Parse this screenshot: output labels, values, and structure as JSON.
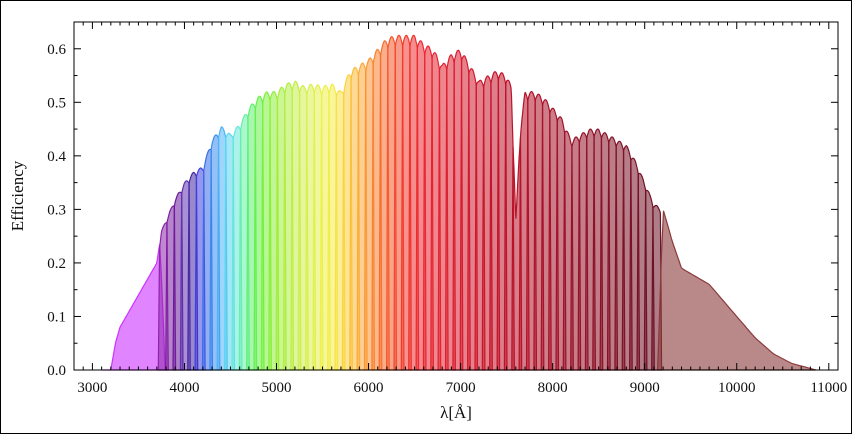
{
  "chart_data": {
    "type": "area",
    "xlabel": "λ[Å]",
    "ylabel": "Efficiency",
    "xlim": [
      2800,
      11100
    ],
    "ylim": [
      0,
      0.65
    ],
    "x_ticks": [
      3000,
      4000,
      5000,
      6000,
      7000,
      8000,
      9000,
      10000,
      11000
    ],
    "y_ticks": [
      0.0,
      0.1,
      0.2,
      0.3,
      0.4,
      0.5,
      0.6
    ],
    "x_tick_labels": [
      "3000",
      "4000",
      "5000",
      "6000",
      "7000",
      "8000",
      "9000",
      "10000",
      "11000"
    ],
    "y_tick_labels": [
      "0.0",
      "0.1",
      "0.2",
      "0.3",
      "0.4",
      "0.5",
      "0.6"
    ],
    "grid": false,
    "envelope": {
      "x": [
        3200,
        3250,
        3300,
        3400,
        3500,
        3600,
        3700,
        3750,
        3800,
        3900,
        4000,
        4100,
        4200,
        4300,
        4400,
        4500,
        4600,
        4700,
        4800,
        4900,
        5000,
        5100,
        5200,
        5300,
        5400,
        5500,
        5600,
        5700,
        5800,
        5900,
        6000,
        6100,
        6200,
        6300,
        6400,
        6500,
        6600,
        6700,
        6800,
        6900,
        7000,
        7100,
        7200,
        7300,
        7400,
        7500,
        7550,
        7600,
        7650,
        7700,
        7800,
        7900,
        8000,
        8100,
        8200,
        8300,
        8400,
        8500,
        8600,
        8700,
        8800,
        8900,
        9000,
        9100,
        9200,
        9300,
        9400,
        9500,
        9600,
        9700,
        9800,
        9900,
        10000,
        10200,
        10400,
        10600,
        10800,
        11000
      ],
      "y": [
        0.0,
        0.05,
        0.08,
        0.11,
        0.14,
        0.17,
        0.2,
        0.26,
        0.28,
        0.32,
        0.35,
        0.37,
        0.38,
        0.43,
        0.455,
        0.44,
        0.46,
        0.49,
        0.51,
        0.52,
        0.52,
        0.535,
        0.54,
        0.53,
        0.535,
        0.53,
        0.535,
        0.52,
        0.56,
        0.57,
        0.58,
        0.6,
        0.62,
        0.625,
        0.625,
        0.625,
        0.61,
        0.6,
        0.57,
        0.59,
        0.6,
        0.57,
        0.54,
        0.55,
        0.56,
        0.55,
        0.53,
        0.28,
        0.45,
        0.52,
        0.52,
        0.51,
        0.49,
        0.47,
        0.43,
        0.44,
        0.45,
        0.45,
        0.44,
        0.43,
        0.42,
        0.39,
        0.35,
        0.31,
        0.3,
        0.24,
        0.19,
        0.18,
        0.17,
        0.16,
        0.14,
        0.12,
        0.1,
        0.06,
        0.03,
        0.012,
        0.003,
        0.0
      ]
    },
    "filters": [
      {
        "center": 3450,
        "width": 560,
        "color": "#cc33ff"
      },
      {
        "center": 3770,
        "width": 80,
        "color": "#8e24aa"
      },
      {
        "center": 3850,
        "width": 80,
        "color": "#7b1fa2"
      },
      {
        "center": 3930,
        "width": 80,
        "color": "#6a1b9a"
      },
      {
        "center": 4010,
        "width": 80,
        "color": "#5e35b1"
      },
      {
        "center": 4090,
        "width": 80,
        "color": "#4527a0"
      },
      {
        "center": 4170,
        "width": 80,
        "color": "#3f3fe0"
      },
      {
        "center": 4250,
        "width": 80,
        "color": "#3a6ee8"
      },
      {
        "center": 4330,
        "width": 80,
        "color": "#3a8ef0"
      },
      {
        "center": 4410,
        "width": 80,
        "color": "#4fb3f5"
      },
      {
        "center": 4490,
        "width": 80,
        "color": "#5ad6f0"
      },
      {
        "center": 4570,
        "width": 80,
        "color": "#66e8d8"
      },
      {
        "center": 4650,
        "width": 80,
        "color": "#66f0a8"
      },
      {
        "center": 4730,
        "width": 80,
        "color": "#5ef070"
      },
      {
        "center": 4810,
        "width": 80,
        "color": "#66f04a"
      },
      {
        "center": 4890,
        "width": 80,
        "color": "#7cf03c"
      },
      {
        "center": 4970,
        "width": 80,
        "color": "#90ee3c"
      },
      {
        "center": 5050,
        "width": 80,
        "color": "#a2ee3c"
      },
      {
        "center": 5130,
        "width": 80,
        "color": "#b2ee44"
      },
      {
        "center": 5210,
        "width": 80,
        "color": "#c2ee4a"
      },
      {
        "center": 5290,
        "width": 80,
        "color": "#d0ee50"
      },
      {
        "center": 5370,
        "width": 80,
        "color": "#daf050"
      },
      {
        "center": 5450,
        "width": 80,
        "color": "#e4f04e"
      },
      {
        "center": 5530,
        "width": 80,
        "color": "#eef04a"
      },
      {
        "center": 5610,
        "width": 80,
        "color": "#f4ec48"
      },
      {
        "center": 5690,
        "width": 80,
        "color": "#f8e044"
      },
      {
        "center": 5770,
        "width": 80,
        "color": "#fcd040"
      },
      {
        "center": 5850,
        "width": 80,
        "color": "#fcbc3c"
      },
      {
        "center": 5930,
        "width": 80,
        "color": "#fca838"
      },
      {
        "center": 6010,
        "width": 80,
        "color": "#fa9434"
      },
      {
        "center": 6090,
        "width": 80,
        "color": "#f88030"
      },
      {
        "center": 6170,
        "width": 80,
        "color": "#f66c2e"
      },
      {
        "center": 6250,
        "width": 80,
        "color": "#f4582c"
      },
      {
        "center": 6330,
        "width": 80,
        "color": "#f2482c"
      },
      {
        "center": 6410,
        "width": 80,
        "color": "#f03a2e"
      },
      {
        "center": 6490,
        "width": 80,
        "color": "#ee3030"
      },
      {
        "center": 6570,
        "width": 80,
        "color": "#ec2a32"
      },
      {
        "center": 6650,
        "width": 80,
        "color": "#e82632"
      },
      {
        "center": 6730,
        "width": 80,
        "color": "#e42432"
      },
      {
        "center": 6810,
        "width": 80,
        "color": "#e02232"
      },
      {
        "center": 6890,
        "width": 80,
        "color": "#dc2030"
      },
      {
        "center": 6970,
        "width": 80,
        "color": "#d81e30"
      },
      {
        "center": 7050,
        "width": 80,
        "color": "#d41c2e"
      },
      {
        "center": 7130,
        "width": 80,
        "color": "#d01a2e"
      },
      {
        "center": 7210,
        "width": 80,
        "color": "#cc182c"
      },
      {
        "center": 7290,
        "width": 80,
        "color": "#c8162c"
      },
      {
        "center": 7370,
        "width": 80,
        "color": "#c4142a"
      },
      {
        "center": 7450,
        "width": 80,
        "color": "#c0142a"
      },
      {
        "center": 7530,
        "width": 80,
        "color": "#bc122a"
      },
      {
        "center": 7610,
        "width": 80,
        "color": "#b81228"
      },
      {
        "center": 7690,
        "width": 80,
        "color": "#b41228"
      },
      {
        "center": 7770,
        "width": 80,
        "color": "#b01228"
      },
      {
        "center": 7850,
        "width": 80,
        "color": "#ac1228"
      },
      {
        "center": 7930,
        "width": 80,
        "color": "#a81228"
      },
      {
        "center": 8010,
        "width": 80,
        "color": "#a41228"
      },
      {
        "center": 8090,
        "width": 80,
        "color": "#a01228"
      },
      {
        "center": 8170,
        "width": 80,
        "color": "#9c1228"
      },
      {
        "center": 8250,
        "width": 80,
        "color": "#981228"
      },
      {
        "center": 8330,
        "width": 80,
        "color": "#941228"
      },
      {
        "center": 8410,
        "width": 80,
        "color": "#901228"
      },
      {
        "center": 8490,
        "width": 80,
        "color": "#8c1228"
      },
      {
        "center": 8570,
        "width": 80,
        "color": "#881226"
      },
      {
        "center": 8650,
        "width": 80,
        "color": "#841226"
      },
      {
        "center": 8730,
        "width": 80,
        "color": "#801226"
      },
      {
        "center": 8810,
        "width": 80,
        "color": "#7c1226"
      },
      {
        "center": 8890,
        "width": 80,
        "color": "#781226"
      },
      {
        "center": 8970,
        "width": 80,
        "color": "#741226"
      },
      {
        "center": 9050,
        "width": 80,
        "color": "#701226"
      },
      {
        "center": 9130,
        "width": 80,
        "color": "#6c1226"
      },
      {
        "center": 10000,
        "width": 1600,
        "color": "#8b3a3a"
      }
    ]
  }
}
